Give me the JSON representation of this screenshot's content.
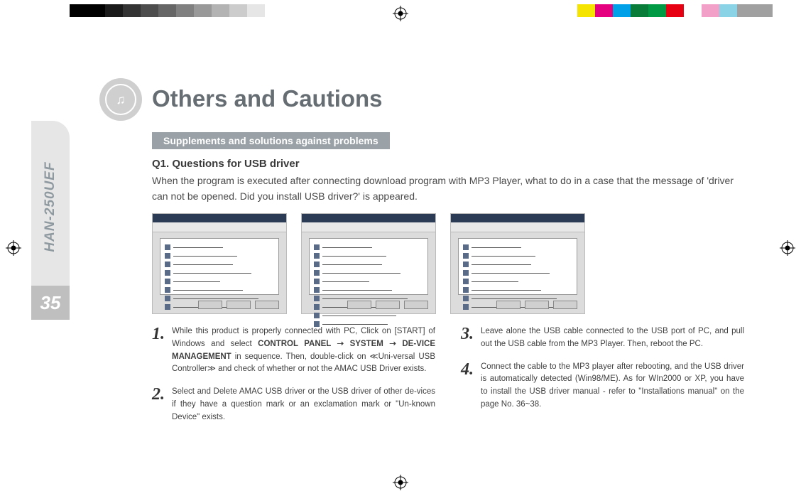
{
  "colorbars": {
    "left": [
      "#000000",
      "#000000",
      "#1a1a1a",
      "#333333",
      "#4d4d4d",
      "#666666",
      "#808080",
      "#999999",
      "#b3b3b3",
      "#cccccc",
      "#e6e6e6",
      "#ffffff"
    ],
    "right": [
      "#f5e400",
      "#e4007f",
      "#00a0e9",
      "#0a7c3a",
      "#009944",
      "#e60012",
      "#ffffff",
      "#f3a0c8",
      "#8ad2e6",
      "#a0a0a0",
      "#a0a0a0"
    ]
  },
  "sidebar": {
    "model": "HAN-250UEF",
    "page_number": "35"
  },
  "heading": {
    "title": "Others and Cautions",
    "subhead": "Supplements and solutions against problems"
  },
  "question": {
    "label": "Q1. Questions for USB driver",
    "body": "When the program is executed after connecting download program with MP3 Player, what to do in a case that the message of 'driver can not be opened. Did you install USB driver?' is appeared."
  },
  "screenshots": {
    "rows": [
      [
        70,
        90,
        84,
        110,
        66,
        98,
        120,
        80
      ],
      [
        70,
        90,
        84,
        110,
        66,
        98,
        120,
        80,
        104,
        92
      ],
      [
        70,
        90,
        84,
        110,
        66,
        98,
        120,
        140
      ]
    ]
  },
  "steps": {
    "left": [
      {
        "n": "1.",
        "text_pre": "While this product is properly connected with PC, Click on [START] of Windows and select ",
        "bold": "CONTROL PANEL ➝ SYSTEM  ➝ DE-VICE MANAGEMENT",
        "text_post": " in sequence. Then, double-click on ≪Uni-versal USB Controller≫ and check of whether or not the AMAC USB Driver exists."
      },
      {
        "n": "2.",
        "text_pre": "Select and Delete AMAC USB driver or the USB driver of other de-vices if they have a question mark or an exclamation mark or \"Un-known Device\" exists.",
        "bold": "",
        "text_post": ""
      }
    ],
    "right": [
      {
        "n": "3.",
        "text_pre": "Leave alone the USB cable connected to the USB port of PC, and pull out the USB cable from the MP3 Player. Then, reboot the PC.",
        "bold": "",
        "text_post": ""
      },
      {
        "n": "4.",
        "text_pre": "Connect the cable to the MP3 player after rebooting, and the USB driver is automatically detected (Win98/ME). As for WIn2000 or XP, you have to install the USB driver manual - refer to \"Installations manual\" on the page No. 36~38.",
        "bold": "",
        "text_post": ""
      }
    ]
  }
}
